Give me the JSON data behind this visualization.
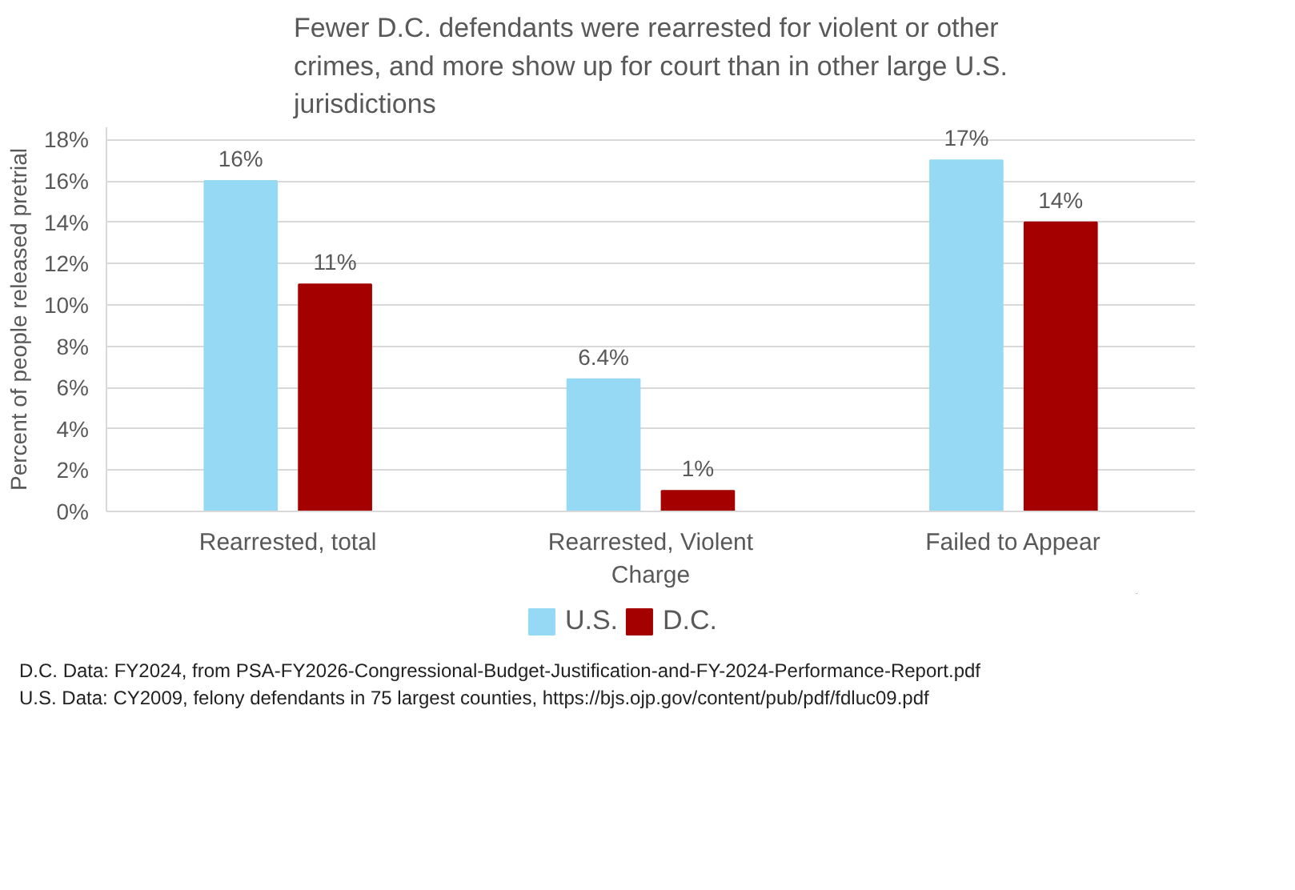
{
  "chart_data": {
    "type": "bar",
    "title": "Fewer D.C. defendants were rearrested for violent or other crimes, and more show up for court than in other large U.S. jurisdictions",
    "ylabel": "Percent of people released pretrial",
    "categories": [
      "Rearrested, total",
      "Rearrested, Violent Charge",
      "Failed to Appear"
    ],
    "series": [
      {
        "name": "U.S.",
        "color": "#95d9f5",
        "values": [
          16,
          6.4,
          17
        ],
        "value_labels": [
          "16%",
          "6.4%",
          "17%"
        ]
      },
      {
        "name": "D.C.",
        "color": "#a50000",
        "values": [
          11,
          1,
          14
        ],
        "value_labels": [
          "11%",
          "1%",
          "14%"
        ]
      }
    ],
    "ylim": [
      0,
      18.6
    ],
    "yticks": [
      {
        "value": 0,
        "label": "0%"
      },
      {
        "value": 2,
        "label": "2%"
      },
      {
        "value": 4,
        "label": "4%"
      },
      {
        "value": 6,
        "label": "6%"
      },
      {
        "value": 8,
        "label": "8%"
      },
      {
        "value": 10,
        "label": "10%"
      },
      {
        "value": 12,
        "label": "12%"
      },
      {
        "value": 14,
        "label": "14%"
      },
      {
        "value": 16,
        "label": "16%"
      },
      {
        "value": 18,
        "label": "18%"
      }
    ],
    "grid": "y",
    "legend": "bottom",
    "annotations": [
      "D.C. Data: FY2024, from PSA-FY2026-Congressional-Budget-Justification-and-FY-2024-Performance-Report.pdf",
      "U.S. Data: CY2009, felony defendants in 75 largest counties, https://bjs.ojp.gov/content/pub/pdf/fdluc09.pdf"
    ]
  }
}
